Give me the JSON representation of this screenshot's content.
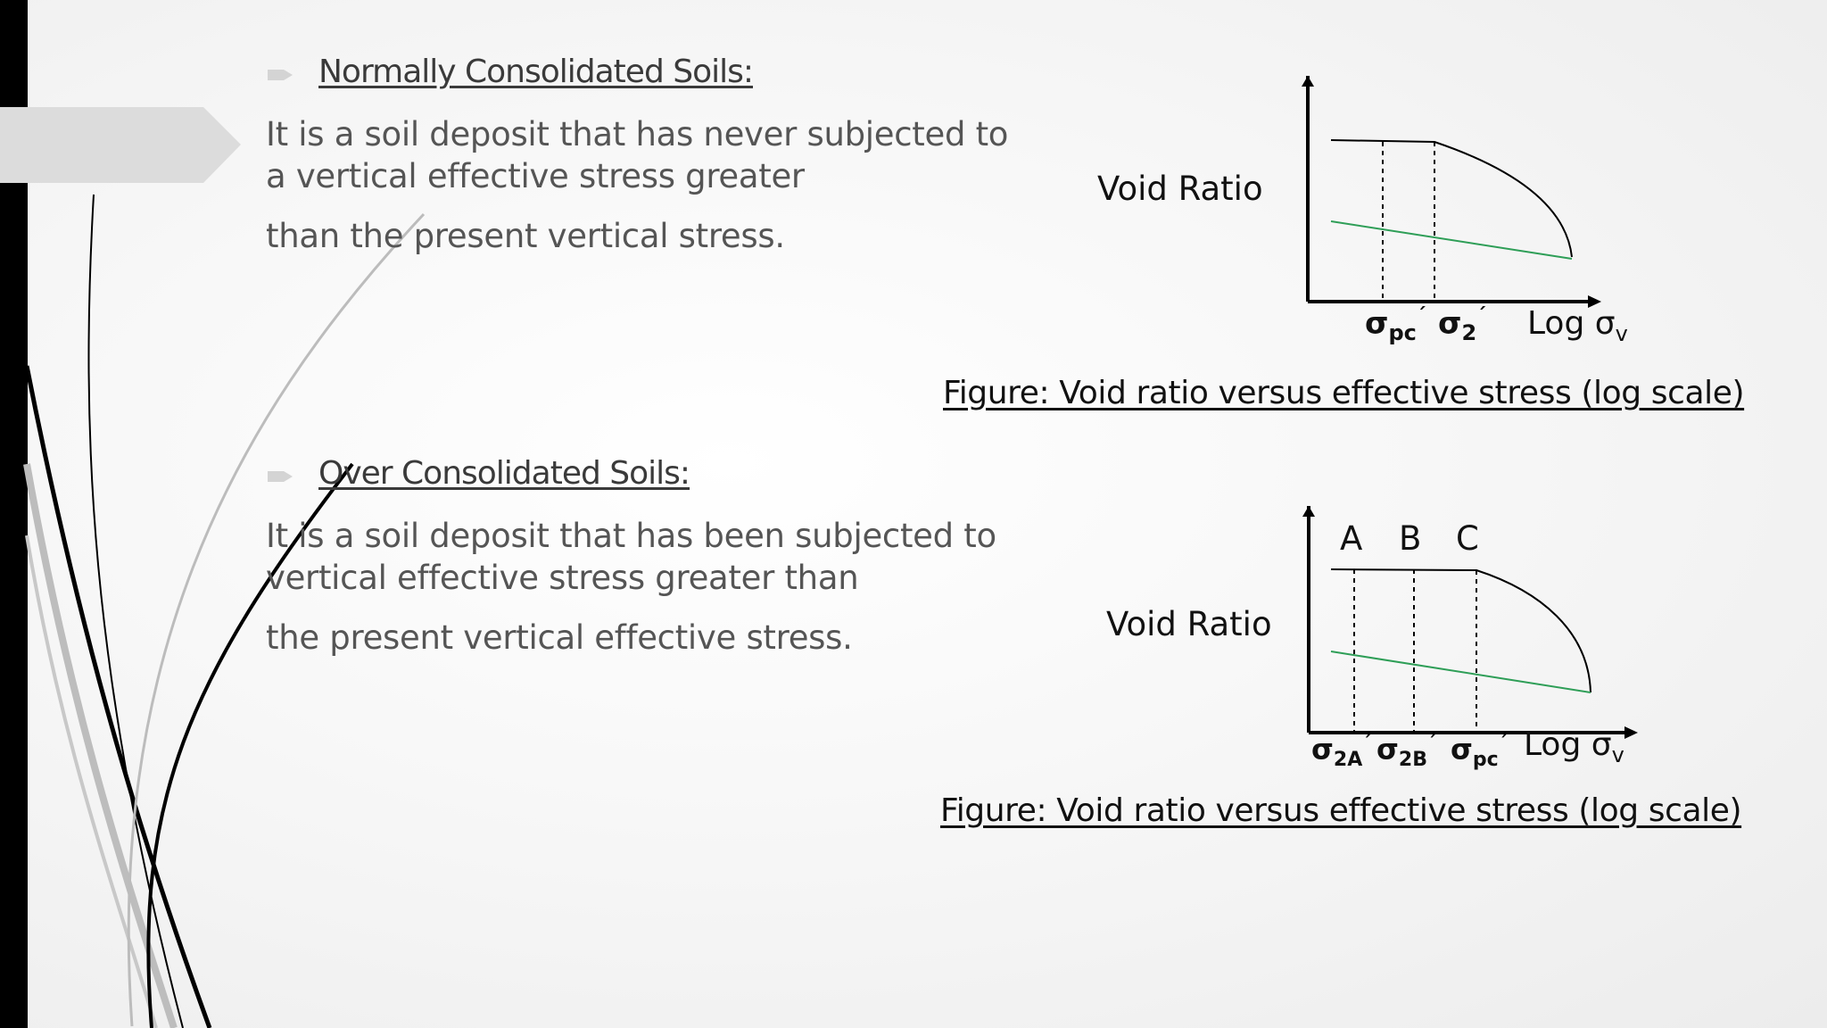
{
  "section1": {
    "heading": "Normally Consolidated Soils:",
    "line1": "It is a soil deposit that has never subjected to",
    "line2": "a vertical effective stress greater",
    "line3": "than the present vertical stress.",
    "figure": {
      "ylabel": "Void Ratio",
      "xlabel": "Log σ",
      "xlabel_sub": "v",
      "tick1_main": "σ",
      "tick1_sub": "pc",
      "tick1_prime": "´",
      "tick2_main": "σ",
      "tick2_sub": "2",
      "tick2_prime": "´",
      "caption": "Figure: Void ratio versus effective stress (log scale)"
    }
  },
  "section2": {
    "heading": "Over Consolidated Soils:",
    "line1": "It is a soil deposit that has been subjected to",
    "line2": "vertical effective stress greater than",
    "line3": "the present vertical effective stress.",
    "figure": {
      "ylabel": "Void Ratio",
      "xlabel": "Log σ",
      "xlabel_sub": "v",
      "label_a": "A",
      "label_b": "B",
      "label_c": "C",
      "tick1_main": "σ",
      "tick1_sub": "2A",
      "tick1_prime": "´",
      "tick2_main": "σ",
      "tick2_sub": "2B",
      "tick2_prime": "´",
      "tick3_main": "σ",
      "tick3_sub": "pc",
      "tick3_prime": "´",
      "caption": "Figure: Void ratio versus effective stress (log scale)"
    }
  },
  "colors": {
    "green_line": "#2e9e57",
    "text_gray": "#555555",
    "heading_gray": "#3a3a3a",
    "bullet_gray": "#d4d4d4"
  }
}
